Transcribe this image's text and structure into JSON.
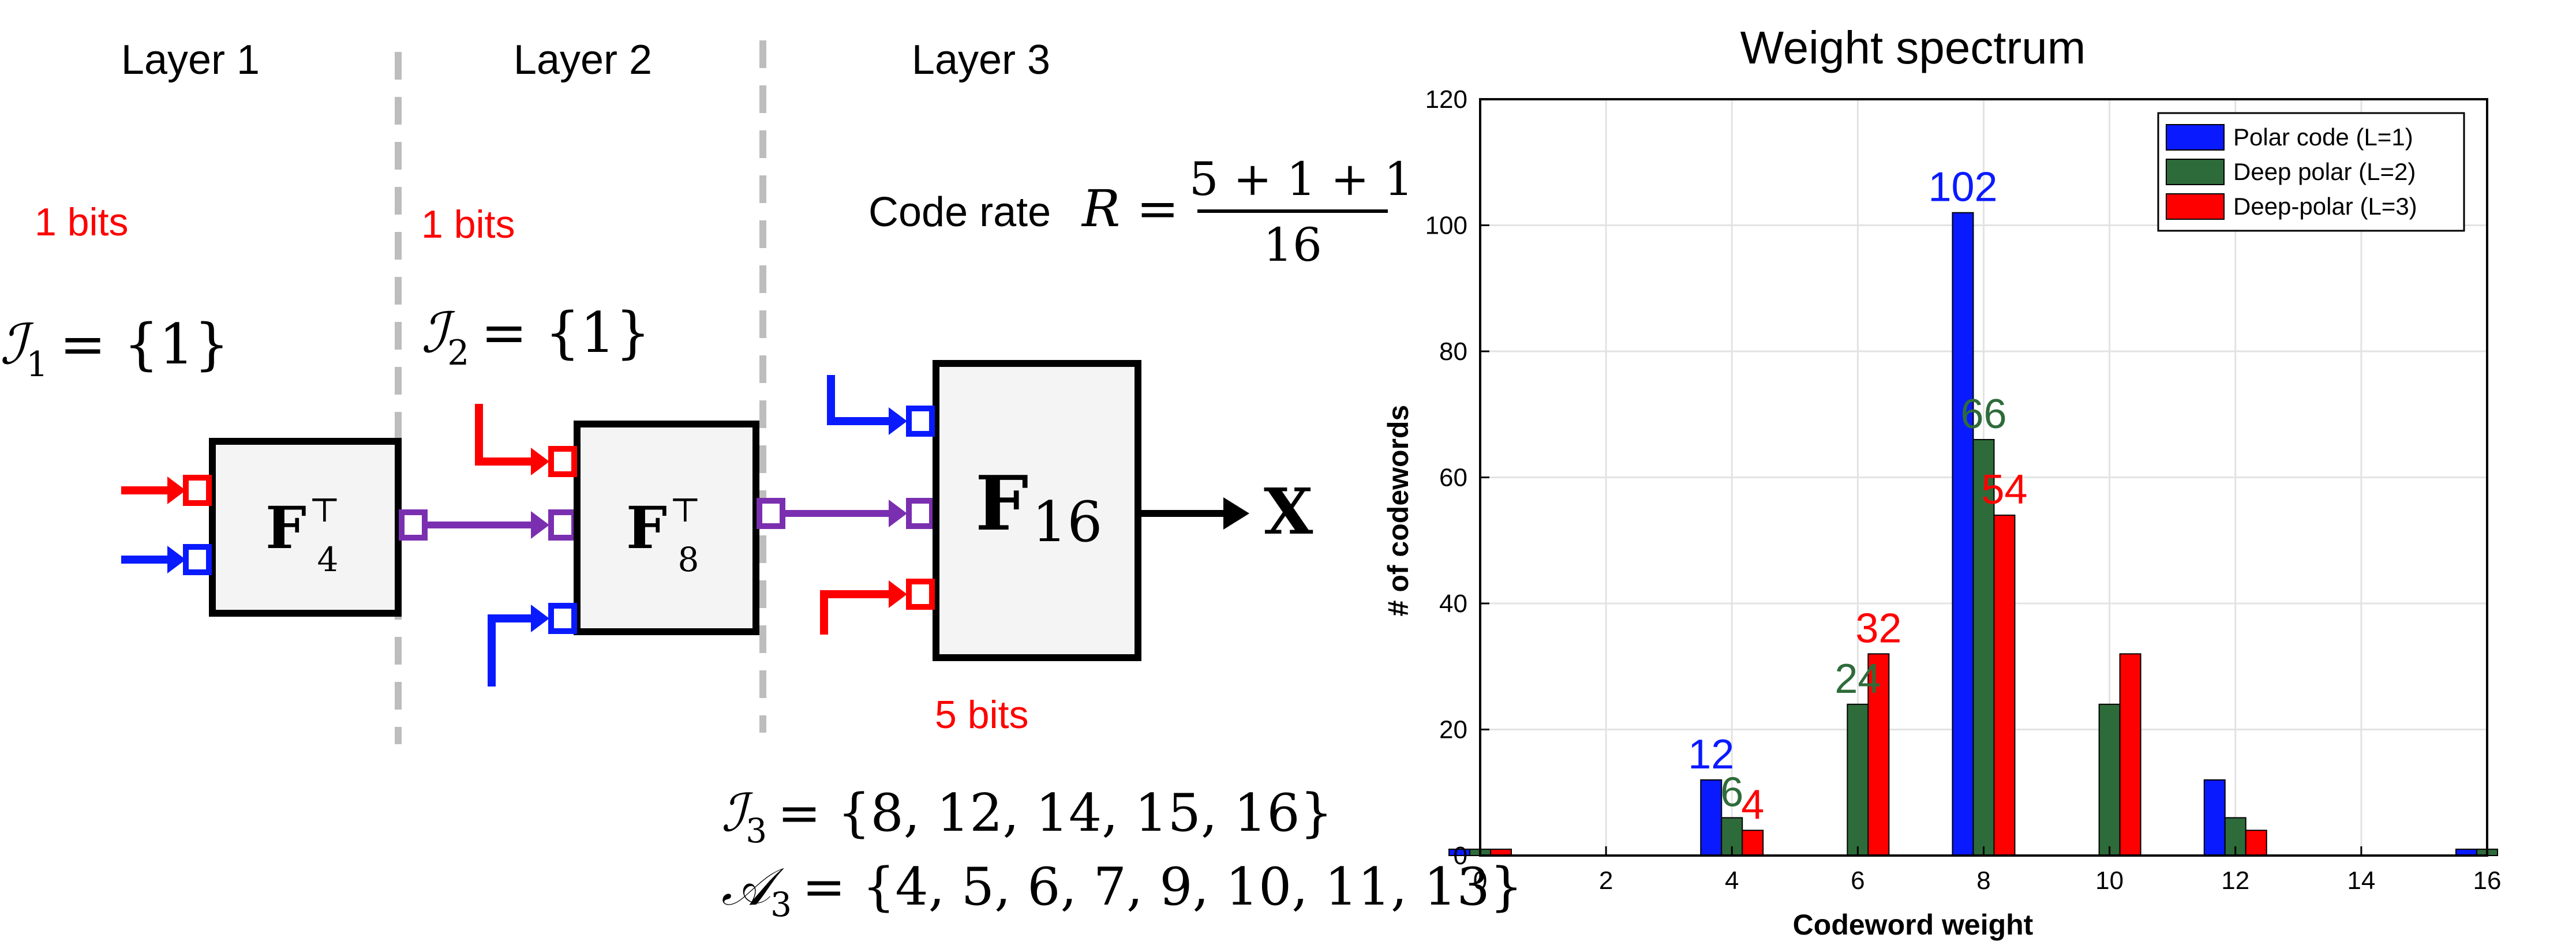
{
  "layers": {
    "layer1": "Layer 1",
    "layer2": "Layer 2",
    "layer3": "Layer 3"
  },
  "bits": {
    "layer1": "1 bits",
    "layer2": "1 bits",
    "layer3": "5 bits"
  },
  "sets": {
    "I1_sym": "ℐ",
    "I1_sub": "1",
    "I1_rhs": "= {1}",
    "I2_sym": "ℐ",
    "I2_sub": "2",
    "I2_rhs": "= {1}",
    "I3_sym": "ℐ",
    "I3_sub": "3",
    "I3_rhs": "= {8, 12, 14, 15, 16}",
    "A3_sym": "𝒜",
    "A3_sub": "3",
    "A3_rhs": "= {4, 5, 6, 7, 9, 10, 11, 13}"
  },
  "code_rate": {
    "label": "Code rate",
    "symbol": "R =",
    "numerator": "5 + 1 + 1",
    "denominator": "16"
  },
  "blocks": {
    "F4_base": "F",
    "F4_sub": "4",
    "F4_sup": "⊤",
    "F8_base": "F",
    "F8_sub": "8",
    "F8_sup": "⊤",
    "F16_base": "F",
    "F16_sub": "16"
  },
  "output_label": "X",
  "colors": {
    "blue": "#0a1aff",
    "green": "#2e6b3a",
    "red": "#ff0000",
    "purple": "#7a2fb0",
    "dash": "#bdbdbd"
  },
  "chart_data": {
    "type": "bar",
    "title": "Weight spectrum",
    "xlabel": "Codeword weight",
    "ylabel": "# of codewords",
    "xlim": [
      0,
      16
    ],
    "ylim": [
      0,
      120
    ],
    "xticks": [
      0,
      2,
      4,
      6,
      8,
      10,
      12,
      14,
      16
    ],
    "yticks": [
      0,
      20,
      40,
      60,
      80,
      100,
      120
    ],
    "grid": true,
    "legend_position": "top-right",
    "categories": [
      0,
      4,
      6,
      8,
      10,
      12,
      16
    ],
    "series": [
      {
        "name": "Polar code (L=1)",
        "color": "#0a1aff",
        "values": [
          1,
          12,
          0,
          102,
          0,
          12,
          1
        ]
      },
      {
        "name": "Deep polar (L=2)",
        "color": "#2e6b3a",
        "values": [
          1,
          6,
          24,
          66,
          24,
          6,
          1
        ]
      },
      {
        "name": "Deep-polar (L=3)",
        "color": "#ff0000",
        "values": [
          1,
          4,
          32,
          54,
          32,
          4,
          0
        ]
      }
    ],
    "annotations": [
      {
        "text": "12",
        "x": 4,
        "series": 0
      },
      {
        "text": "6",
        "x": 4,
        "series": 1
      },
      {
        "text": "4",
        "x": 4,
        "series": 2
      },
      {
        "text": "24",
        "x": 6,
        "series": 1
      },
      {
        "text": "32",
        "x": 6,
        "series": 2
      },
      {
        "text": "102",
        "x": 8,
        "series": 0
      },
      {
        "text": "66",
        "x": 8,
        "series": 1
      },
      {
        "text": "54",
        "x": 8,
        "series": 2
      }
    ]
  }
}
